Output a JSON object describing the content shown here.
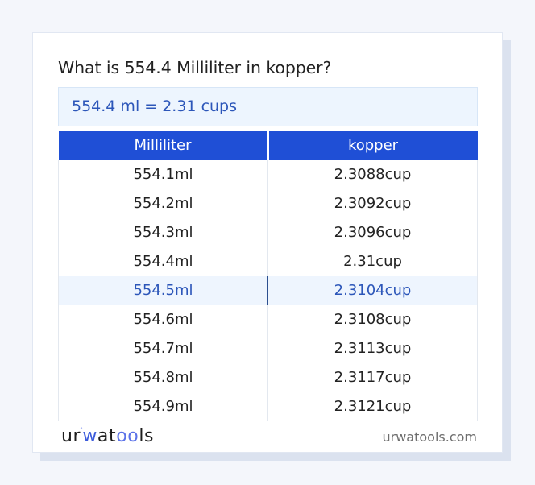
{
  "page": {
    "title": "What is 554.4 Milliliter in kopper?",
    "result": "554.4 ml = 2.31 cups"
  },
  "table": {
    "headers": [
      "Milliliter",
      "kopper"
    ],
    "rows": [
      {
        "ml": "554.1ml",
        "cup": "2.3088cup"
      },
      {
        "ml": "554.2ml",
        "cup": "2.3092cup"
      },
      {
        "ml": "554.3ml",
        "cup": "2.3096cup"
      },
      {
        "ml": "554.4ml",
        "cup": "2.31cup"
      },
      {
        "ml": "554.5ml",
        "cup": "2.3104cup"
      },
      {
        "ml": "554.6ml",
        "cup": "2.3108cup"
      },
      {
        "ml": "554.7ml",
        "cup": "2.3113cup"
      },
      {
        "ml": "554.8ml",
        "cup": "2.3117cup"
      },
      {
        "ml": "554.9ml",
        "cup": "2.3121cup"
      }
    ],
    "highlighted_row_index": 4
  },
  "footer": {
    "logo": {
      "part1": "ur",
      "dot": "°",
      "part2": "w",
      "part3": "at",
      "part4": "oo",
      "part5": "ls"
    },
    "site": "urwatools.com"
  },
  "colors": {
    "header_bg": "#1f4fd6",
    "accent_text": "#2c56b9",
    "result_bg": "#edf5fe",
    "highlight_bg": "#eef5fe"
  }
}
